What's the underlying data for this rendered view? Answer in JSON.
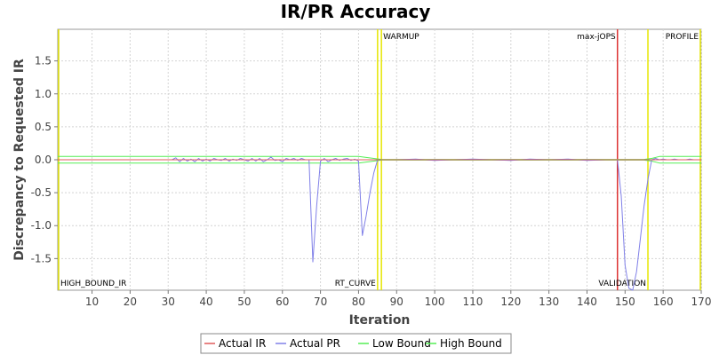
{
  "chart_data": {
    "type": "line",
    "title": "IR/PR Accuracy",
    "xlabel": "Iteration",
    "ylabel": "Discrepancy to Requested IR",
    "xlim": [
      1,
      170
    ],
    "ylim": [
      -1.98,
      1.98
    ],
    "x_ticks": [
      10,
      20,
      30,
      40,
      50,
      60,
      70,
      80,
      90,
      100,
      110,
      120,
      130,
      140,
      150,
      160,
      170
    ],
    "y_ticks": [
      1.5,
      1.0,
      0.5,
      0.0,
      -0.5,
      -1.0,
      -1.5
    ],
    "y_tick_labels": [
      "1.5",
      "1.0",
      "0.5",
      "0.0",
      "-0.5",
      "-1.0",
      "-1.5"
    ],
    "grid": true,
    "legend_position": "bottom",
    "series": [
      {
        "name": "Actual IR",
        "color": "#e05a5a",
        "x": [
          1,
          170
        ],
        "y": [
          0,
          0
        ]
      },
      {
        "name": "Actual PR",
        "color": "#8080e8",
        "x": [
          31,
          32,
          33,
          34,
          35,
          36,
          37,
          38,
          39,
          40,
          41,
          42,
          43,
          44,
          45,
          46,
          47,
          48,
          49,
          50,
          51,
          52,
          53,
          54,
          55,
          56,
          57,
          58,
          59,
          60,
          61,
          62,
          63,
          64,
          65,
          66,
          67,
          68,
          69,
          70,
          71,
          72,
          73,
          74,
          75,
          76,
          77,
          78,
          79,
          80,
          81,
          82,
          83,
          84,
          85,
          86,
          90,
          95,
          100,
          105,
          110,
          115,
          120,
          125,
          130,
          135,
          140,
          145,
          147,
          148,
          149,
          150,
          151,
          152,
          153,
          154,
          155,
          156,
          157,
          158,
          159,
          160,
          161,
          162,
          163,
          164,
          165,
          166,
          167,
          168,
          169,
          170
        ],
        "y": [
          0.0,
          0.03,
          -0.03,
          0.02,
          -0.02,
          0.01,
          -0.03,
          0.02,
          -0.02,
          0.01,
          -0.02,
          0.02,
          0.0,
          -0.01,
          0.02,
          -0.02,
          0.01,
          -0.01,
          0.02,
          0.0,
          -0.02,
          0.02,
          -0.02,
          0.02,
          -0.03,
          0.0,
          0.04,
          -0.01,
          0.0,
          -0.03,
          0.02,
          0.0,
          0.02,
          -0.01,
          0.02,
          0.0,
          0.0,
          -1.55,
          -0.7,
          -0.02,
          0.02,
          -0.03,
          0.0,
          0.02,
          -0.01,
          0.01,
          0.02,
          -0.01,
          0.01,
          -0.02,
          -1.15,
          -0.85,
          -0.5,
          -0.2,
          0.0,
          0.0,
          0.0,
          0.01,
          -0.01,
          0.0,
          0.01,
          0.0,
          -0.01,
          0.01,
          0.0,
          0.01,
          -0.01,
          0.0,
          0.0,
          0.0,
          -0.55,
          -1.6,
          -1.95,
          -1.98,
          -1.7,
          -1.2,
          -0.7,
          -0.3,
          0.0,
          0.02,
          0.0,
          0.01,
          0.0,
          0.0,
          0.01,
          0.0,
          0.0,
          0.0,
          0.01,
          0.0,
          0.0,
          0.0
        ]
      },
      {
        "name": "Low Bound",
        "color": "#55ee55",
        "x": [
          1,
          80,
          84,
          86,
          155,
          157,
          159,
          170
        ],
        "y": [
          -0.05,
          -0.05,
          -0.02,
          -0.005,
          -0.005,
          -0.02,
          -0.05,
          -0.05
        ]
      },
      {
        "name": "High Bound",
        "color": "#55ee55",
        "x": [
          1,
          80,
          84,
          86,
          155,
          157,
          159,
          170
        ],
        "y": [
          0.05,
          0.05,
          0.02,
          0.005,
          0.005,
          0.02,
          0.05,
          0.05
        ]
      }
    ],
    "markers": [
      {
        "label": "HIGH_BOUND_IR",
        "x": 1,
        "color": "#e6e600",
        "label_pos": "bottom"
      },
      {
        "label": "RT_CURVE",
        "x": 85,
        "color": "#e6e600",
        "label_pos": "bottom"
      },
      {
        "label": "WARMUP",
        "x": 86,
        "color": "#e6e600",
        "label_pos": "top"
      },
      {
        "label": "max-jOPS",
        "x": 148,
        "color": "#dd3333",
        "label_pos": "top"
      },
      {
        "label": "VALIDATION",
        "x": 156,
        "color": "#e6e600",
        "label_pos": "bottom"
      },
      {
        "label": "PROFILE",
        "x": 170,
        "color": "#e6e600",
        "label_pos": "top"
      }
    ]
  }
}
